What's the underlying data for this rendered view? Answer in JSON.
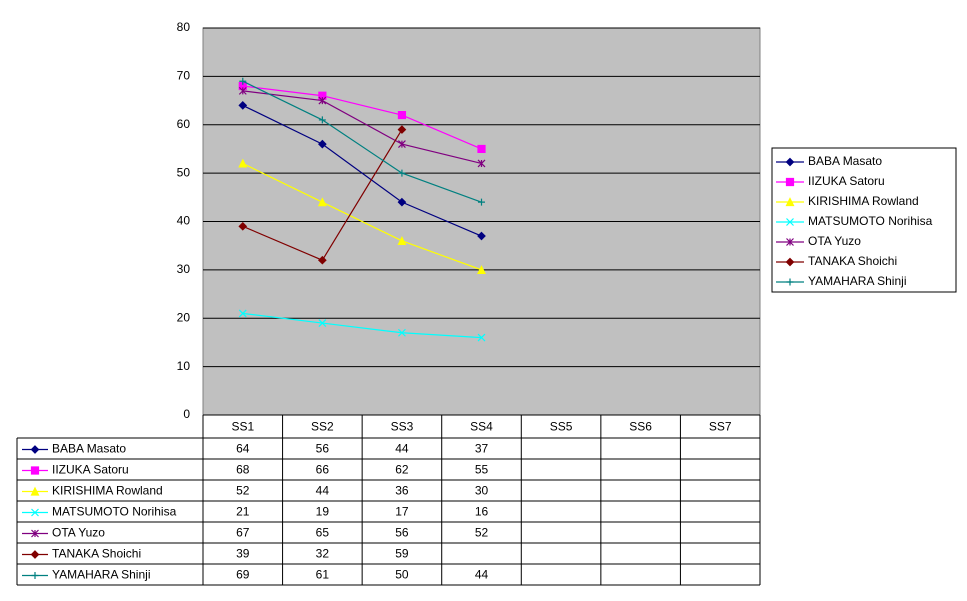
{
  "chart_data": {
    "type": "line",
    "categories": [
      "SS1",
      "SS2",
      "SS3",
      "SS4",
      "SS5",
      "SS6",
      "SS7"
    ],
    "series": [
      {
        "name": "BABA Masato",
        "color": "#000080",
        "marker": "diamond",
        "values": [
          64,
          56,
          44,
          37,
          null,
          null,
          null
        ]
      },
      {
        "name": "IIZUKA Satoru",
        "color": "#ff00ff",
        "marker": "square",
        "values": [
          68,
          66,
          62,
          55,
          null,
          null,
          null
        ]
      },
      {
        "name": "KIRISHIMA Rowland",
        "color": "#ffff00",
        "marker": "triangle",
        "values": [
          52,
          44,
          36,
          30,
          null,
          null,
          null
        ]
      },
      {
        "name": "MATSUMOTO Norihisa",
        "color": "#00ffff",
        "marker": "x",
        "values": [
          21,
          19,
          17,
          16,
          null,
          null,
          null
        ]
      },
      {
        "name": "OTA Yuzo",
        "color": "#800080",
        "marker": "star",
        "values": [
          67,
          65,
          56,
          52,
          null,
          null,
          null
        ]
      },
      {
        "name": "TANAKA Shoichi",
        "color": "#800000",
        "marker": "diamond",
        "values": [
          39,
          32,
          59,
          null,
          null,
          null,
          null
        ]
      },
      {
        "name": "YAMAHARA Shinji",
        "color": "#008080",
        "marker": "plus",
        "values": [
          69,
          61,
          50,
          44,
          null,
          null,
          null
        ]
      }
    ],
    "ylim": [
      0,
      80
    ],
    "yticks": [
      0,
      10,
      20,
      30,
      40,
      50,
      60,
      70,
      80
    ],
    "grid": true,
    "legend": "right",
    "data_table": true
  }
}
